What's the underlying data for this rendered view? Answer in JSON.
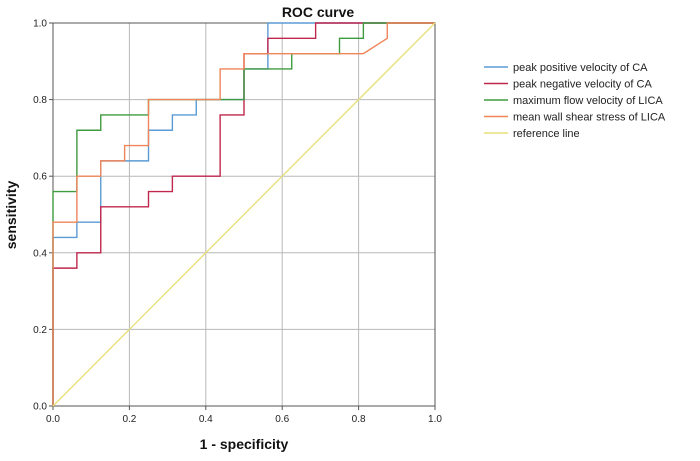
{
  "chart_data": {
    "type": "line",
    "title": "ROC curve",
    "xlabel": "1 - specificity",
    "ylabel": "sensitivity",
    "xlim": [
      0,
      1
    ],
    "ylim": [
      0,
      1
    ],
    "x_ticks": [
      "0.0",
      "0.2",
      "0.4",
      "0.6",
      "0.8",
      "1.0"
    ],
    "y_ticks": [
      "0.0",
      "0.2",
      "0.4",
      "0.6",
      "0.8",
      "1.0"
    ],
    "grid": true,
    "legend_position": "right",
    "series": [
      {
        "name": "peak positive velocity of CA",
        "color": "#5b9bd5",
        "points": [
          [
            0,
            0
          ],
          [
            0,
            0.44
          ],
          [
            0.0625,
            0.44
          ],
          [
            0.0625,
            0.48
          ],
          [
            0.125,
            0.48
          ],
          [
            0.125,
            0.64
          ],
          [
            0.1875,
            0.64
          ],
          [
            0.25,
            0.64
          ],
          [
            0.25,
            0.72
          ],
          [
            0.3125,
            0.72
          ],
          [
            0.3125,
            0.76
          ],
          [
            0.375,
            0.76
          ],
          [
            0.375,
            0.8
          ],
          [
            0.5,
            0.8
          ],
          [
            0.5,
            0.88
          ],
          [
            0.5625,
            0.88
          ],
          [
            0.5625,
            1.0
          ],
          [
            1.0,
            1.0
          ]
        ]
      },
      {
        "name": "peak negative velocity of CA",
        "color": "#c0274d",
        "points": [
          [
            0,
            0
          ],
          [
            0,
            0.36
          ],
          [
            0.0625,
            0.36
          ],
          [
            0.0625,
            0.4
          ],
          [
            0.125,
            0.4
          ],
          [
            0.125,
            0.52
          ],
          [
            0.25,
            0.52
          ],
          [
            0.25,
            0.56
          ],
          [
            0.3125,
            0.56
          ],
          [
            0.3125,
            0.6
          ],
          [
            0.4375,
            0.6
          ],
          [
            0.4375,
            0.76
          ],
          [
            0.5,
            0.76
          ],
          [
            0.5,
            0.92
          ],
          [
            0.5625,
            0.92
          ],
          [
            0.5625,
            0.96
          ],
          [
            0.6875,
            0.96
          ],
          [
            0.6875,
            1.0
          ],
          [
            1.0,
            1.0
          ]
        ]
      },
      {
        "name": "maximum flow velocity of LICA",
        "color": "#3f9b3f",
        "points": [
          [
            0,
            0
          ],
          [
            0,
            0.56
          ],
          [
            0.0625,
            0.56
          ],
          [
            0.0625,
            0.72
          ],
          [
            0.125,
            0.72
          ],
          [
            0.125,
            0.76
          ],
          [
            0.25,
            0.76
          ],
          [
            0.25,
            0.8
          ],
          [
            0.5,
            0.8
          ],
          [
            0.5,
            0.88
          ],
          [
            0.625,
            0.88
          ],
          [
            0.625,
            0.92
          ],
          [
            0.75,
            0.92
          ],
          [
            0.75,
            0.96
          ],
          [
            0.8125,
            0.96
          ],
          [
            0.8125,
            1.0
          ],
          [
            1.0,
            1.0
          ]
        ]
      },
      {
        "name": "mean wall shear stress of LICA",
        "color": "#f0855a",
        "points": [
          [
            0,
            0
          ],
          [
            0,
            0.48
          ],
          [
            0.0625,
            0.48
          ],
          [
            0.0625,
            0.6
          ],
          [
            0.125,
            0.6
          ],
          [
            0.125,
            0.64
          ],
          [
            0.1875,
            0.64
          ],
          [
            0.1875,
            0.68
          ],
          [
            0.25,
            0.68
          ],
          [
            0.25,
            0.8
          ],
          [
            0.4375,
            0.8
          ],
          [
            0.4375,
            0.88
          ],
          [
            0.5,
            0.88
          ],
          [
            0.5,
            0.92
          ],
          [
            0.8125,
            0.92
          ],
          [
            0.875,
            0.96
          ],
          [
            0.875,
            1.0
          ],
          [
            1.0,
            1.0
          ]
        ]
      },
      {
        "name": "reference line",
        "color": "#e8e07a",
        "points": [
          [
            0,
            0
          ],
          [
            1,
            1
          ]
        ]
      }
    ]
  }
}
